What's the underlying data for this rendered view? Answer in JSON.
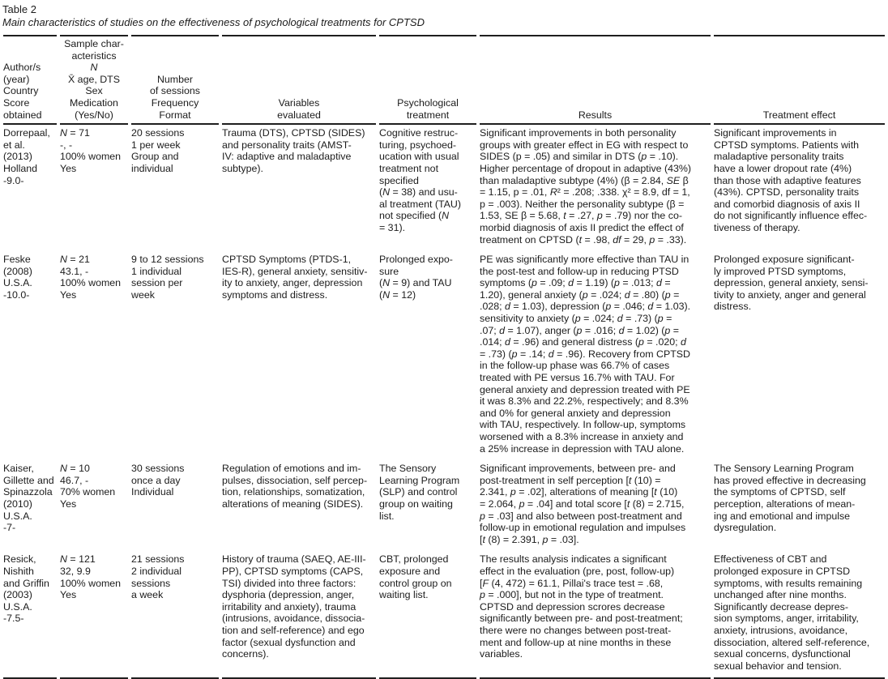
{
  "title": "Table 2",
  "subtitle": "Main characteristics of studies on the effectiveness of psychological treatments for CPTSD",
  "columns": [
    {
      "id": "author",
      "label": "Author/s\n(year)\nCountry\nScore\nobtained"
    },
    {
      "id": "sample",
      "label": "Sample char-\nacteristics\n*N*\nX̄ age, DTS\nSex\nMedication\n(Yes/No)"
    },
    {
      "id": "sessions",
      "label": "Number\nof sessions\nFrequency\nFormat"
    },
    {
      "id": "variables",
      "label": "Variables\nevaluated"
    },
    {
      "id": "treatment",
      "label": "Psychological\ntreatment"
    },
    {
      "id": "results",
      "label": "Results"
    },
    {
      "id": "effect",
      "label": "Treatment effect"
    }
  ],
  "rows": [
    {
      "author": "Dorrepaal,\net al. (2013)\nHolland\n-9.0-",
      "sample": "*N* = 71\n-, -\n100% women\nYes",
      "sessions": "20 sessions\n1 per week\nGroup and\nindividual",
      "variables": "Trauma (DTS), CPTSD (SIDES)\nand personality traits (AMST-\nIV: adaptive and maladaptive\nsubtype).",
      "treatment": "Cognitive restruc-\nturing, psychoed-\nucation with usual\ntreatment not\nspecified\n(*N* = 38) and usu-\nal treatment (TAU)\nnot specified (*N*\n= 31).",
      "results": "Significant improvements in both personality\ngroups with greater effect in EG with respect to\nSIDES (p = .05) and similar in DTS (*p* = .10).\nHigher percentage of dropout in adaptive (43%)\nthan maladaptive subtype (4%) (β = 2.84, *SE* β\n= 1.15, p = .01, *R*² = .208; .338. χ² = 8.9, df = 1,\np = .003). Neither the personality subtype (β =\n1.53, SE β = 5.68, *t* = .27, *p* = .79) nor the co-\nmorbid diagnosis of axis II predict the effect of\ntreatment on CPTSD (*t* = .98, *df* = 29, *p* = .33).",
      "effect": "Significant improvements in\nCPTSD symptoms. Patients with\nmaladaptive personality traits\nhave a lower dropout rate (4%)\nthan those with adaptive features\n(43%). CPTSD, personality traits\nand comorbid diagnosis of axis II\ndo not significantly influence effec-\ntiveness of therapy."
    },
    {
      "author": "Feske\n(2008)\nU.S.A.\n-10.0-",
      "sample": "*N* = 21\n43.1, -\n100% women\nYes",
      "sessions": "9 to 12 sessions\n1 individual\nsession per\nweek",
      "variables": "CPTSD Symptoms (PTDS-1,\nIES-R), general anxiety, sensitiv-\nity to anxiety, anger, depression\nsymptoms and distress.",
      "treatment": "Prolonged expo-\nsure\n(*N* = 9) and TAU\n(*N* = 12)",
      "results": "PE was significantly more effective than TAU in\nthe post-test and follow-up in reducing PTSD\nsymptoms (*p* = .09; *d* = 1.19) (*p* = .013; *d* =\n1.20), general anxiety (*p* = .024; *d* = .80) (*p* =\n.028; *d* = 1.03), depression (*p* = .046; *d* = 1.03).\nsensitivity to anxiety (*p* = .024; *d* = .73) (*p* =\n.07; *d* = 1.07), anger (*p* = .016; *d* = 1.02) (*p* =\n.014; *d* = .96) and general distress (*p* = .020; *d*\n= .73) (*p* = .14; *d* = .96). Recovery from CPTSD\nin the follow-up phase was 66.7% of cases\ntreated with PE versus 16.7% with TAU. For\ngeneral anxiety and depression treated with PE\nit was 8.3% and 22.2%, respectively; and 8.3%\nand 0% for general anxiety and depression\nwith TAU, respectively. In follow-up, symptoms\nworsened with a 8.3% increase in anxiety and\na 25% increase in depression with TAU alone.",
      "effect": "Prolonged exposure significant-\nly improved PTSD symptoms,\ndepression, general anxiety, sensi-\ntivity to anxiety, anger and general\ndistress."
    },
    {
      "author": "Kaiser,\nGillette and\nSpinazzola\n(2010)\nU.S.A.\n-7-",
      "sample": "*N* = 10\n46.7, -\n70% women\nYes",
      "sessions": "30 sessions\nonce a day\nIndividual",
      "variables": "Regulation of emotions and im-\npulses, dissociation, self percep-\ntion, relationships, somatization,\nalterations of meaning (SIDES).",
      "treatment": "The Sensory\nLearning Program\n(SLP) and control\ngroup on waiting\nlist.",
      "results": "Significant improvements, between pre- and\npost-treatment in self perception [*t* (10) =\n2.341, *p* = .02], alterations of meaning [*t* (10)\n= 2.064, *p* = .04] and total score [*t* (8) = 2.715,\n*p* = .03] and also between post-treatment and\nfollow-up in emotional regulation and impulses\n[*t* (8) = 2.391, *p* = .03].",
      "effect": "The Sensory Learning Program\nhas proved effective in decreasing\nthe symptoms of CPTSD, self\nperception, alterations of mean-\ning and emotional and impulse\ndysregulation."
    },
    {
      "author": "Resick,\nNishith\nand Griffin\n(2003)\nU.S.A.\n-7.5-",
      "sample": "*N* = 121\n32, 9.9\n100% women\nYes",
      "sessions": "21 sessions\n2 individual\nsessions\na week",
      "variables": "History of trauma (SAEQ, AE-III-\nPP), CPTSD symptoms (CAPS,\nTSI) divided into three factors:\ndysphoria (depression, anger,\nirritability and anxiety), trauma\n(intrusions, avoidance, dissocia-\ntion and self-reference) and ego\nfactor (sexual dysfunction and\nconcerns).",
      "treatment": "CBT, prolonged\nexposure and\ncontrol group on\nwaiting list.",
      "results": "The results analysis indicates a significant\neffect in the evaluation (pre, post, follow-up)\n[*F* (4, 472) = 61.1, Pillai's trace test = .68,\n*p* = .000], but not in the type of treatment.\nCPTSD and depression scrores decrease\nsignificantly between pre- and post-treatment;\nthere were no changes between post-treat-\nment and follow-up at nine months in these\nvariables.",
      "effect": "Effectiveness of CBT and\nprolonged exposure in CPTSD\nsymptoms, with results remaining\nunchanged after nine months.\nSignificantly decrease depres-\nsion symptoms, anger, irritability,\nanxiety, intrusions, avoidance,\ndissociation, altered self-reference,\nsexual concerns, dysfunctional\nsexual behavior and tension."
    }
  ]
}
